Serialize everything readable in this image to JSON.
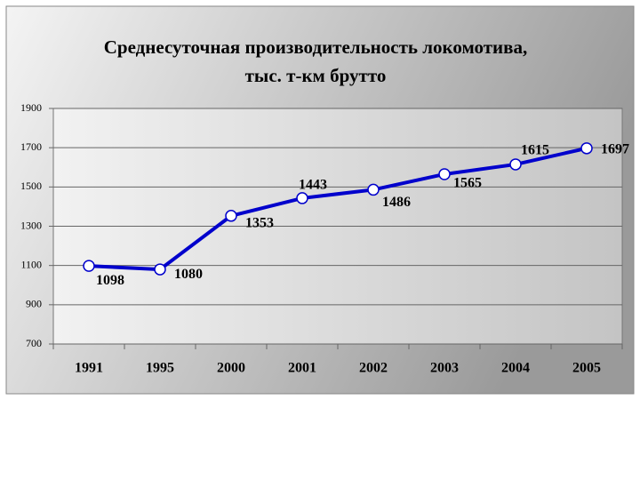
{
  "chart_data": {
    "type": "line",
    "title": [
      "Среднесуточная производительность локомотива,",
      "тыс. т-км брутто"
    ],
    "categories": [
      "1991",
      "1995",
      "2000",
      "2001",
      "2002",
      "2003",
      "2004",
      "2005"
    ],
    "series": [
      {
        "name": "Среднесуточная производительность",
        "color": "#0000cc",
        "values": [
          1098,
          1080,
          1353,
          1443,
          1486,
          1565,
          1615,
          1697
        ]
      }
    ],
    "ylim": [
      700,
      1900
    ],
    "yticks": [
      700,
      900,
      1100,
      1300,
      1500,
      1700,
      1900
    ],
    "grid": true,
    "data_labels": true
  }
}
